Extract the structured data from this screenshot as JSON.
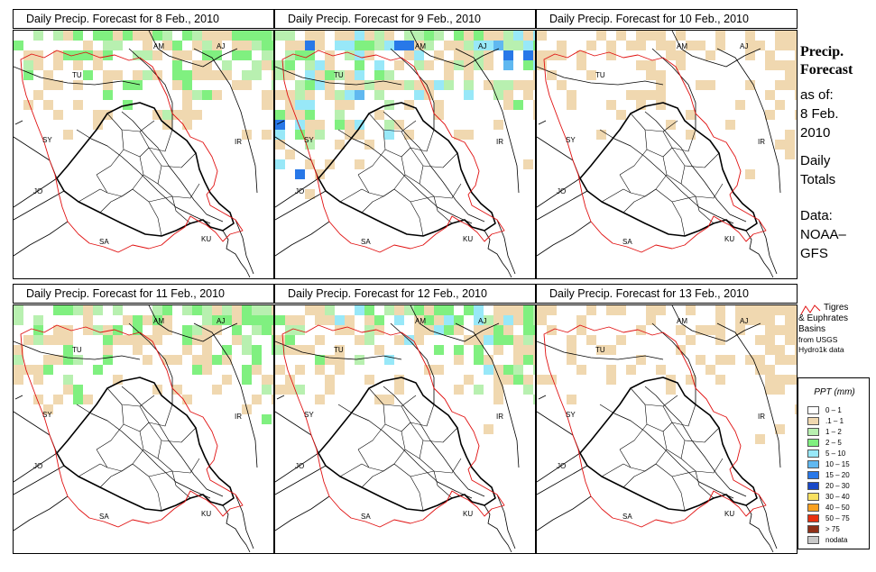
{
  "panels": [
    {
      "title": "Daily Precip. Forecast for  8 Feb., 2010",
      "intensity": 1
    },
    {
      "title": "Daily Precip. Forecast for  9 Feb., 2010",
      "intensity": 3
    },
    {
      "title": "Daily Precip. Forecast for  10 Feb., 2010",
      "intensity": 0
    },
    {
      "title": "Daily Precip. Forecast for  11 Feb., 2010",
      "intensity": 1
    },
    {
      "title": "Daily Precip. Forecast for  12 Feb., 2010",
      "intensity": 2
    },
    {
      "title": "Daily Precip. Forecast for  13 Feb., 2010",
      "intensity": 0
    }
  ],
  "map_labels": {
    "am": "AM",
    "aj": "AJ",
    "tu": "TU",
    "sy": "SY",
    "ir": "IR",
    "jo": "JO",
    "sa": "SA",
    "ku": "KU"
  },
  "sidebar": {
    "heading_line1": "Precip.",
    "heading_line2": "Forecast",
    "asof": "as of:",
    "date_line1": "8 Feb.",
    "date_line2": "2010",
    "daily_line1": "Daily",
    "daily_line2": "Totals",
    "data_line1": "Data:",
    "data_line2": "NOAA–",
    "data_line3": "GFS"
  },
  "basin_note": {
    "line1": "Tigres",
    "line2": "& Euphrates",
    "line3": "Basins",
    "line4": "from USGS",
    "line5": "Hydro1k data"
  },
  "legend": {
    "title": "PPT (mm)",
    "items": [
      {
        "label": "0 – 1",
        "color": "#ffffff"
      },
      {
        "label": ".1 – 1",
        "color": "#f0d8b0"
      },
      {
        "label": "1 – 2",
        "color": "#b8f0b0"
      },
      {
        "label": "2 – 5",
        "color": "#80f080"
      },
      {
        "label": "5 – 10",
        "color": "#98e8f8"
      },
      {
        "label": "10 – 15",
        "color": "#60b8f0"
      },
      {
        "label": "15 – 20",
        "color": "#2878e8"
      },
      {
        "label": "20 – 30",
        "color": "#1848c8"
      },
      {
        "label": "30 – 40",
        "color": "#f8e060"
      },
      {
        "label": "40 – 50",
        "color": "#f8a020"
      },
      {
        "label": "50 – 75",
        "color": "#e83010"
      },
      {
        "label": "> 75",
        "color": "#903018"
      },
      {
        "label": "nodata",
        "color": "#c8c8c8"
      }
    ]
  }
}
